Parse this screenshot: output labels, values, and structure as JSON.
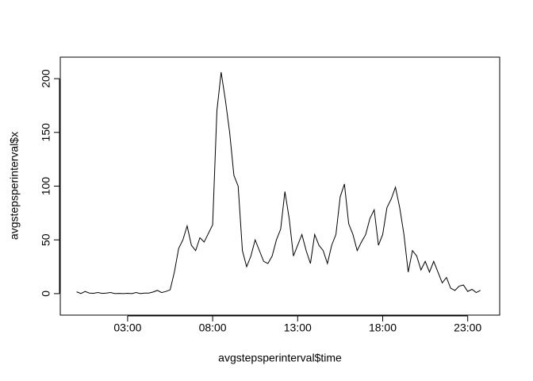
{
  "chart_data": {
    "type": "line",
    "x_label": "avgstepsperinterval$time",
    "y_label": "avgstepsperinterval$x",
    "x": [
      0,
      0.25,
      0.5,
      0.75,
      1,
      1.25,
      1.5,
      1.75,
      2,
      2.25,
      2.5,
      2.75,
      3,
      3.25,
      3.5,
      3.75,
      4,
      4.25,
      4.5,
      4.75,
      5,
      5.25,
      5.5,
      5.75,
      6,
      6.25,
      6.5,
      6.75,
      7,
      7.25,
      7.5,
      7.75,
      8,
      8.25,
      8.5,
      8.75,
      9,
      9.25,
      9.5,
      9.75,
      10,
      10.25,
      10.5,
      10.75,
      11,
      11.25,
      11.5,
      11.75,
      12,
      12.25,
      12.5,
      12.75,
      13,
      13.25,
      13.5,
      13.75,
      14,
      14.25,
      14.5,
      14.75,
      15,
      15.25,
      15.5,
      15.75,
      16,
      16.25,
      16.5,
      16.75,
      17,
      17.25,
      17.5,
      17.75,
      18,
      18.25,
      18.5,
      18.75,
      19,
      19.25,
      19.5,
      19.75,
      20,
      20.25,
      20.5,
      20.75,
      21,
      21.25,
      21.5,
      21.75,
      22,
      22.25,
      22.5,
      22.75,
      23,
      23.25,
      23.5,
      23.75
    ],
    "series": [
      {
        "color": "#000000",
        "values": [
          1.7,
          0.1,
          2,
          0.5,
          0.3,
          1,
          0.2,
          0.5,
          1,
          0,
          0.2,
          0,
          0.3,
          0,
          1,
          0,
          0.5,
          0.5,
          1.5,
          3,
          1,
          2,
          3.5,
          20,
          42,
          50,
          63,
          45,
          40,
          52,
          48,
          56,
          64,
          170,
          206,
          180,
          150,
          110,
          100,
          40,
          25,
          35,
          50,
          40,
          30,
          28,
          35,
          50,
          60,
          95,
          70,
          35,
          45,
          55,
          40,
          28,
          55,
          45,
          40,
          28,
          45,
          55,
          90,
          102,
          65,
          55,
          40,
          48,
          55,
          70,
          78,
          45,
          55,
          80,
          88,
          99,
          80,
          55,
          20,
          40,
          35,
          22,
          30,
          20,
          30,
          20,
          10,
          15,
          5,
          3,
          7,
          8,
          2,
          4,
          1,
          3
        ]
      }
    ],
    "xlim": [
      -0.96,
      24.88
    ],
    "ylim": [
      -20,
      220
    ],
    "xticks": [
      {
        "value": 3,
        "label": "03:00"
      },
      {
        "value": 8,
        "label": "08:00"
      },
      {
        "value": 13,
        "label": "13:00"
      },
      {
        "value": 18,
        "label": "18:00"
      },
      {
        "value": 23,
        "label": "23:00"
      }
    ],
    "yticks": [
      0,
      50,
      100,
      150,
      200
    ]
  }
}
